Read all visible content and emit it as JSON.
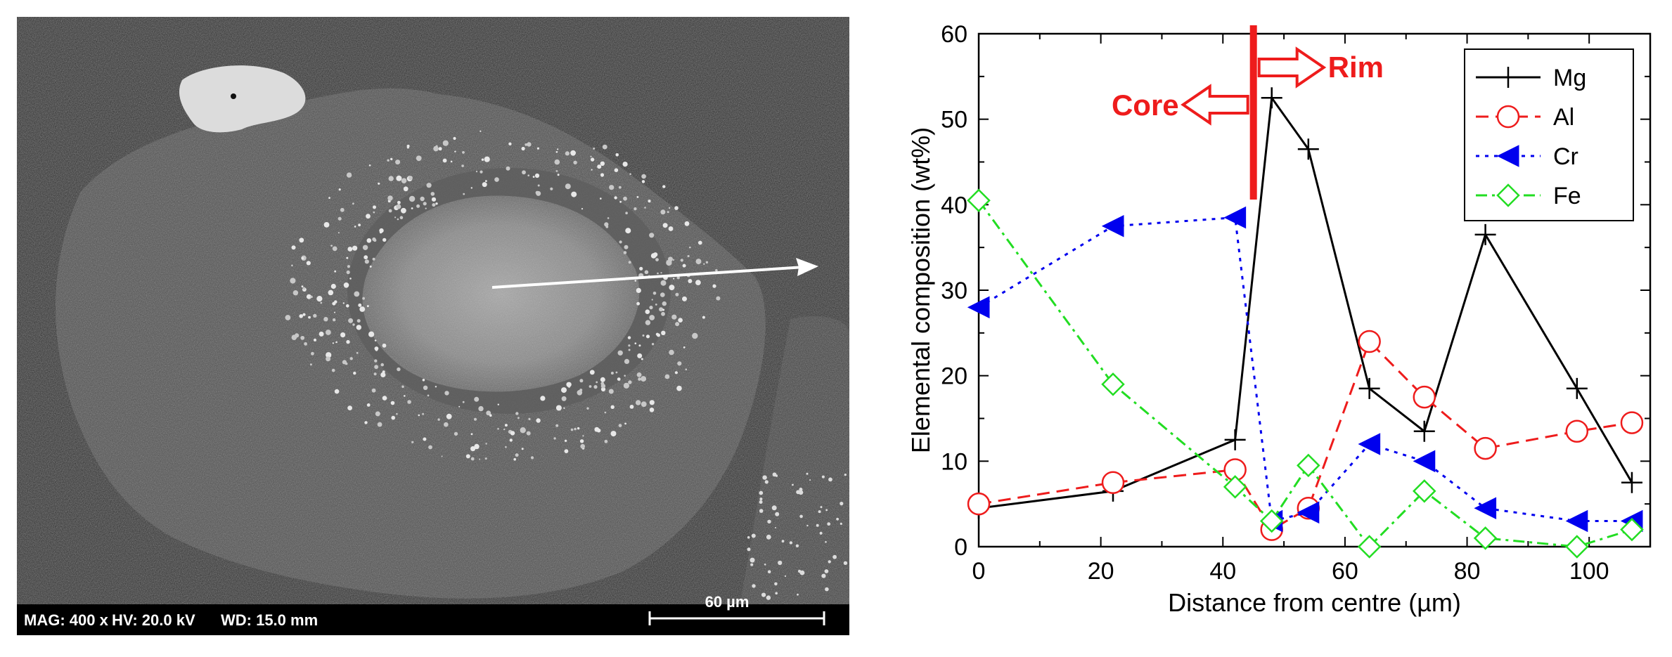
{
  "micrograph": {
    "mag": "MAG: 400 x",
    "hv": "HV: 20.0 kV",
    "wd": "WD: 15.0 mm",
    "scale_bar": "60 µm"
  },
  "chart_data": {
    "type": "line",
    "title": "",
    "xlabel": "Distance from centre (µm)",
    "ylabel": "Elemental composition (wt%)",
    "xlim": [
      0,
      110
    ],
    "ylim": [
      0,
      60
    ],
    "xticks": [
      0,
      20,
      40,
      60,
      80,
      100
    ],
    "yticks": [
      0,
      10,
      20,
      30,
      40,
      50,
      60
    ],
    "grid": false,
    "legend_position": "top-right",
    "series": [
      {
        "name": "Mg",
        "color": "#000000",
        "dash": "solid",
        "marker": "plus",
        "x": [
          0,
          22,
          42,
          48,
          54,
          64,
          73,
          83,
          98,
          107
        ],
        "y": [
          4.5,
          6.5,
          12.5,
          52.5,
          46.5,
          18.5,
          13.5,
          36.5,
          18.5,
          7.5
        ]
      },
      {
        "name": "Al",
        "color": "#ee1c1c",
        "dash": "dashed",
        "marker": "circle",
        "x": [
          0,
          22,
          42,
          48,
          54,
          64,
          73,
          83,
          98,
          107
        ],
        "y": [
          5,
          7.5,
          9,
          2,
          4.5,
          24,
          17.5,
          11.5,
          13.5,
          14.5
        ]
      },
      {
        "name": "Cr",
        "color": "#0000ee",
        "dash": "dotted",
        "marker": "triangle-left",
        "x": [
          0,
          22,
          42,
          48,
          54,
          64,
          73,
          83,
          98,
          107
        ],
        "y": [
          28,
          37.5,
          38.5,
          3,
          4,
          12,
          10,
          4.5,
          3,
          3
        ]
      },
      {
        "name": "Fe",
        "color": "#22dd22",
        "dash": "dashdot",
        "marker": "diamond",
        "x": [
          0,
          22,
          42,
          48,
          54,
          64,
          73,
          83,
          98,
          107
        ],
        "y": [
          40.5,
          19,
          7,
          3,
          9.5,
          0,
          6.5,
          1,
          0,
          2
        ]
      }
    ],
    "annotations": {
      "boundary_x": 45,
      "core_label": "Core",
      "rim_label": "Rim"
    }
  }
}
